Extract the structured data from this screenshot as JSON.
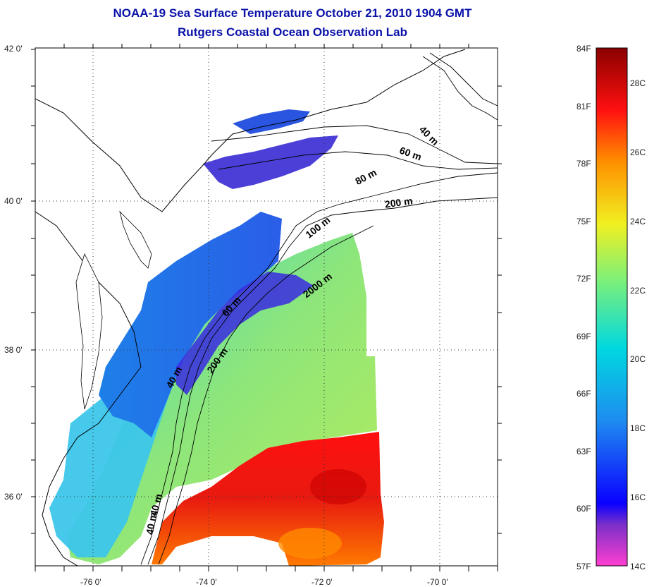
{
  "header": {
    "title": "NOAA-19 Sea Surface Temperature October 21, 2010 1904 GMT",
    "subtitle": "Rutgers Coastal Ocean Observation Lab"
  },
  "map": {
    "lat_labels": [
      "42 0'",
      "40 0'",
      "38 0'",
      "36 0'"
    ],
    "lon_labels": [
      "-76 0'",
      "-74 0'",
      "-72 0'",
      "-70 0'"
    ],
    "contour_labels": [
      "40 m",
      "60 m",
      "80 m",
      "200 m",
      "100 m",
      "2000 m",
      "60 m",
      "200 m",
      "40 m",
      "40 m",
      "40 m"
    ],
    "land_color": "#ffffff",
    "grid": "dotted"
  },
  "colorbar": {
    "fahrenheit_labels": [
      "84F",
      "81F",
      "78F",
      "75F",
      "72F",
      "69F",
      "66F",
      "63F",
      "60F",
      "57F"
    ],
    "celsius_labels": [
      "28C",
      "26C",
      "24C",
      "22C",
      "20C",
      "18C",
      "16C",
      "14C"
    ],
    "colors": [
      "#ff3fd0",
      "#7a2fc8",
      "#0a00ff",
      "#1e8cf0",
      "#00d8e0",
      "#7cf07a",
      "#f0f020",
      "#ff9000",
      "#ff1010",
      "#8b0000"
    ]
  }
}
